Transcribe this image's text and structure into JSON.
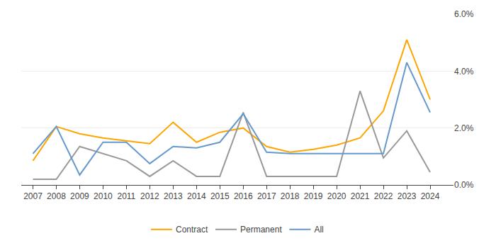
{
  "chart_data": {
    "type": "line",
    "x": [
      2007,
      2008,
      2009,
      2010,
      2011,
      2012,
      2013,
      2014,
      2015,
      2016,
      2017,
      2018,
      2019,
      2020,
      2021,
      2022,
      2023,
      2024
    ],
    "series": [
      {
        "name": "Contract",
        "color": "#FFA500",
        "values": [
          0.85,
          2.05,
          1.8,
          1.65,
          1.55,
          1.45,
          2.2,
          1.5,
          1.85,
          2.0,
          1.35,
          1.15,
          1.25,
          1.4,
          1.65,
          2.6,
          5.1,
          3.0
        ]
      },
      {
        "name": "Permanent",
        "color": "#999999",
        "values": [
          0.2,
          0.2,
          1.35,
          1.1,
          0.85,
          0.3,
          0.85,
          0.3,
          0.3,
          2.55,
          0.3,
          0.3,
          0.3,
          0.3,
          3.3,
          0.95,
          1.9,
          0.45
        ]
      },
      {
        "name": "All",
        "color": "#6699CC",
        "values": [
          1.1,
          2.05,
          0.35,
          1.5,
          1.5,
          0.75,
          1.35,
          1.3,
          1.5,
          2.5,
          1.15,
          1.1,
          1.1,
          1.1,
          1.1,
          1.1,
          4.3,
          2.55
        ]
      }
    ],
    "xlim": [
      2006.5,
      2025.0
    ],
    "xticks": [
      2007,
      2008,
      2009,
      2010,
      2011,
      2012,
      2013,
      2014,
      2015,
      2016,
      2017,
      2018,
      2019,
      2020,
      2021,
      2022,
      2023,
      2024
    ],
    "ylim": [
      0.0,
      6.0
    ],
    "yticks": [
      {
        "value": 0.0,
        "label": "0.0%"
      },
      {
        "value": 2.0,
        "label": "2.0%"
      },
      {
        "value": 4.0,
        "label": "4.0%"
      },
      {
        "value": 6.0,
        "label": "6.0%"
      }
    ],
    "grid": true,
    "legend": "bottom"
  }
}
